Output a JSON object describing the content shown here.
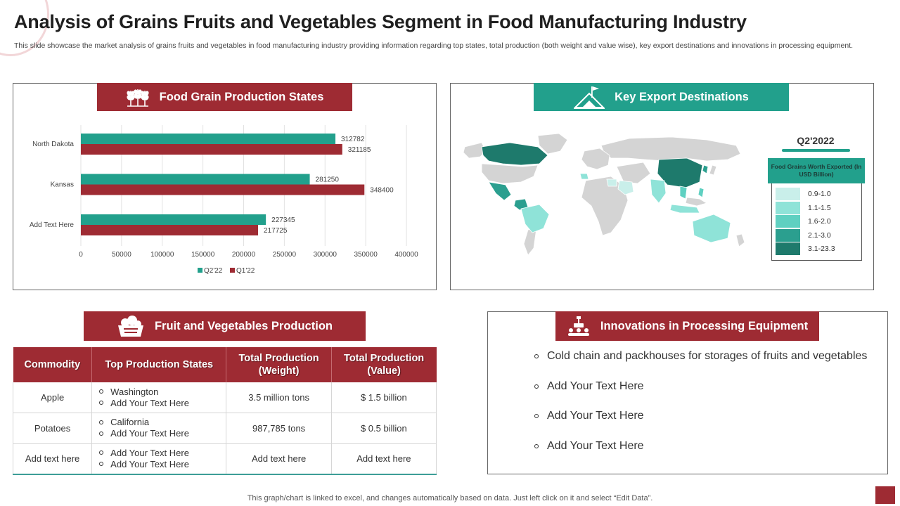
{
  "header": {
    "title": "Analysis of Grains Fruits and Vegetables Segment in Food Manufacturing Industry",
    "subtitle": "This slide showcase the market analysis of grains fruits and vegetables in food manufacturing industry providing information regarding top states, total production (both weight and value wise), key export destinations and innovations in processing equipment."
  },
  "grain_panel": {
    "title": "Food Grain Production States",
    "icon": "wheat-icon"
  },
  "export_panel": {
    "title": "Key Export Destinations",
    "icon": "flag-mountain-icon",
    "period": "Q2'2022",
    "legend_title": "Food Grains Worth Exported (In USD Billion)",
    "legend": [
      {
        "label": "0.9-1.0",
        "color": "#c9efea"
      },
      {
        "label": "1.1-1.5",
        "color": "#8fe3d8"
      },
      {
        "label": "1.6-2.0",
        "color": "#5fd0c1"
      },
      {
        "label": "2.1-3.0",
        "color": "#2b9f8f"
      },
      {
        "label": "3.1-23.3",
        "color": "#1e7a6c"
      }
    ]
  },
  "fruit_panel": {
    "title": "Fruit and Vegetables Production",
    "icon": "fruit-basket-icon",
    "columns": [
      "Commodity",
      "Top Production States",
      "Total Production (Weight)",
      "Total Production (Value)"
    ],
    "rows": [
      {
        "commodity": "Apple",
        "states": [
          "Washington",
          "Add Your Text Here"
        ],
        "weight": "3.5 million tons",
        "value": "$ 1.5 billion"
      },
      {
        "commodity": "Potatoes",
        "states": [
          "California",
          "Add Your Text Here"
        ],
        "weight": "987,785 tons",
        "value": "$ 0.5 billion"
      },
      {
        "commodity": "Add text here",
        "states": [
          "Add Your Text Here",
          "Add Your Text Here"
        ],
        "weight": "Add text here",
        "value": "Add text here"
      }
    ]
  },
  "innovation_panel": {
    "title": "Innovations in Processing Equipment",
    "icon": "robot-arm-icon",
    "items": [
      "Cold chain and packhouses for storages of fruits and vegetables",
      "Add Your Text Here",
      "Add Your Text Here",
      "Add Your Text Here"
    ]
  },
  "chart_data": {
    "type": "bar",
    "orientation": "horizontal",
    "categories": [
      "North Dakota",
      "Kansas",
      "Add Text Here"
    ],
    "series": [
      {
        "name": "Q2'22",
        "color": "#22a08c",
        "values": [
          312782,
          281250,
          227345
        ]
      },
      {
        "name": "Q1'22",
        "color": "#9e2b33",
        "values": [
          321185,
          348400,
          217725
        ]
      }
    ],
    "xlim": [
      0,
      400000
    ],
    "ticks": [
      0,
      50000,
      100000,
      150000,
      200000,
      250000,
      300000,
      350000,
      400000
    ],
    "grid": true,
    "legend_position": "bottom"
  },
  "footer": {
    "note": "This graph/chart is linked to excel, and changes automatically based on data. Just left click on it and select “Edit Data”."
  }
}
